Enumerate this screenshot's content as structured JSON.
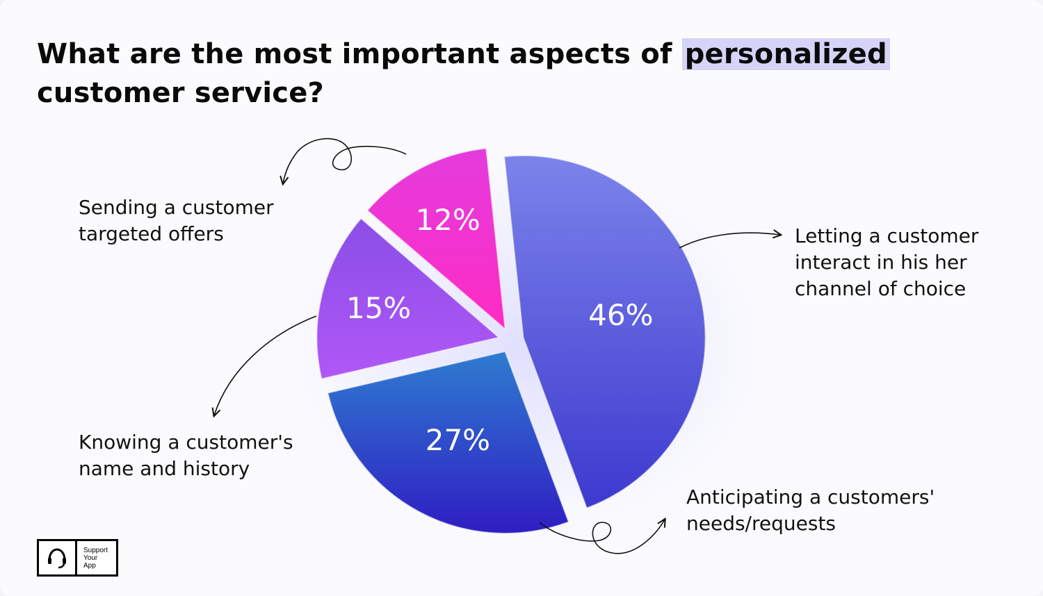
{
  "title": {
    "before": "What are the most important aspects of ",
    "highlight": "personalized",
    "after": "customer service?"
  },
  "chart_data": {
    "type": "pie",
    "title": "What are the most important aspects of personalized customer service?",
    "slices": [
      {
        "label": "Letting a customer\ninteract in his her\nchannel of choice",
        "value": 46,
        "value_label": "46%",
        "color_top": "#7c83ea",
        "color_bottom": "#3d39cf"
      },
      {
        "label": "Anticipating a customers'\nneeds/requests",
        "value": 27,
        "value_label": "27%",
        "color_top": "#2f7cd0",
        "color_bottom": "#2f1dc2"
      },
      {
        "label": "Knowing a customer's\nname and history",
        "value": 15,
        "value_label": "15%",
        "color_top": "#8a4ee6",
        "color_bottom": "#b057f7"
      },
      {
        "label": "Sending a customer\ntargeted offers",
        "value": 12,
        "value_label": "12%",
        "color_top": "#e43bdd",
        "color_bottom": "#ff2cc3"
      }
    ]
  },
  "logo": {
    "text": "Support\nYour\nApp",
    "icon": "headset-icon"
  }
}
